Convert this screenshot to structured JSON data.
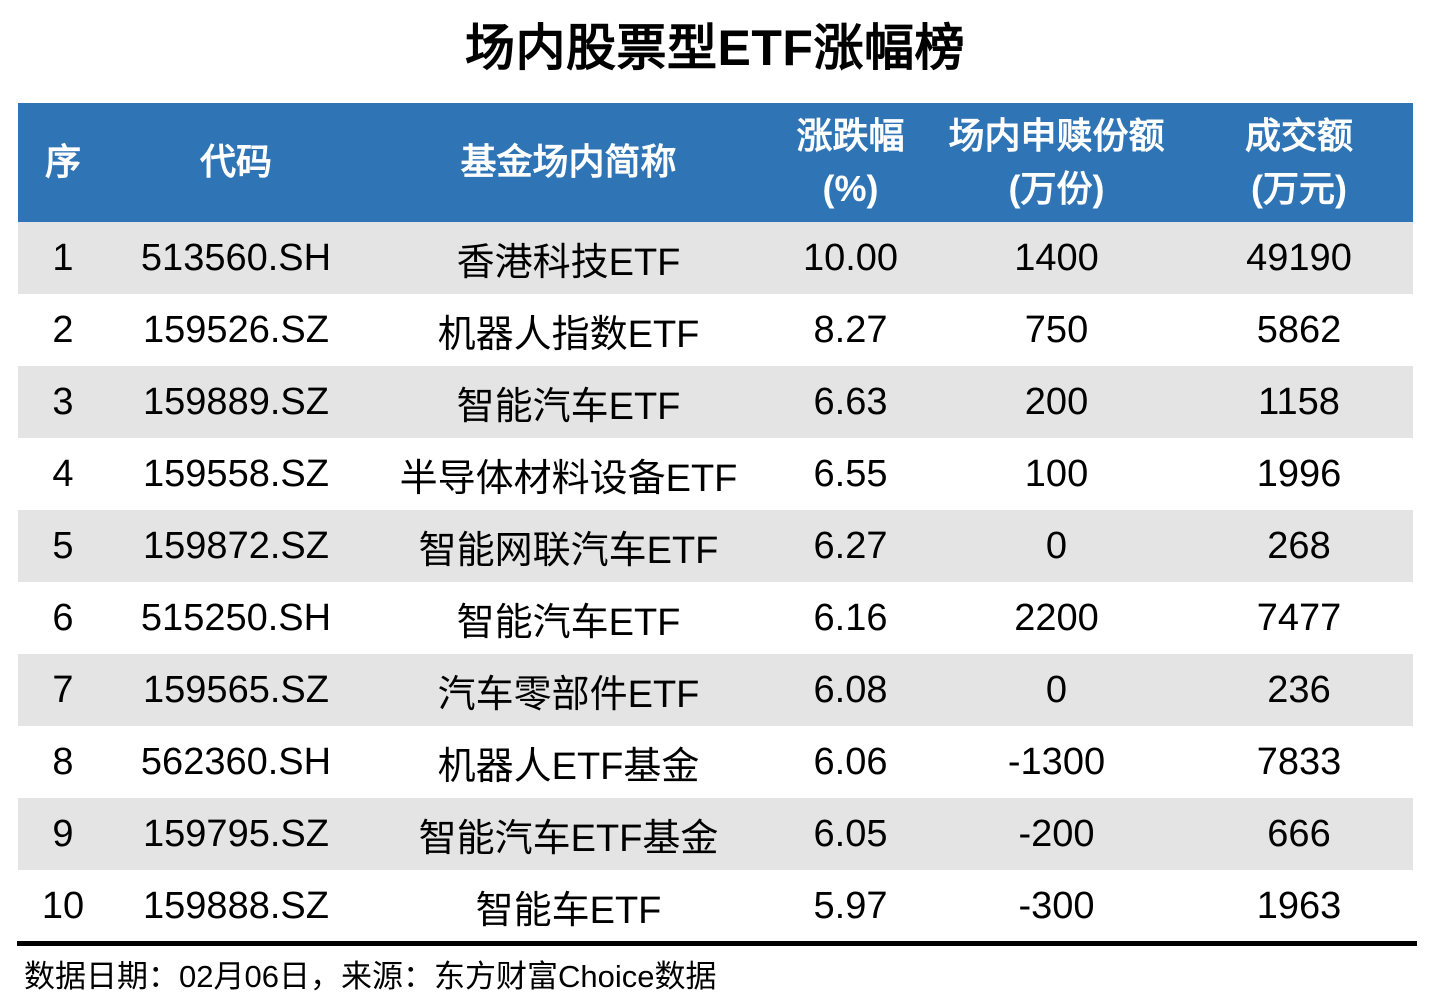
{
  "title": "场内股票型ETF涨幅榜",
  "colors": {
    "header_bg": "#2F74B5",
    "header_text": "#FFFFFF",
    "row_alt_bg": "#E4E4E4",
    "row_bg": "#FFFFFF",
    "body_text": "#000000",
    "divider": "#000000"
  },
  "table": {
    "columns": [
      {
        "label": "序",
        "unit": ""
      },
      {
        "label": "代码",
        "unit": ""
      },
      {
        "label": "基金场内简称",
        "unit": ""
      },
      {
        "label": "涨跌幅",
        "unit": "(%)"
      },
      {
        "label": "场内申赎份额",
        "unit": "(万份)"
      },
      {
        "label": "成交额",
        "unit": "(万元)"
      }
    ],
    "rows": [
      [
        "1",
        "513560.SH",
        "香港科技ETF",
        "10.00",
        "1400",
        "49190"
      ],
      [
        "2",
        "159526.SZ",
        "机器人指数ETF",
        "8.27",
        "750",
        "5862"
      ],
      [
        "3",
        "159889.SZ",
        "智能汽车ETF",
        "6.63",
        "200",
        "1158"
      ],
      [
        "4",
        "159558.SZ",
        "半导体材料设备ETF",
        "6.55",
        "100",
        "1996"
      ],
      [
        "5",
        "159872.SZ",
        "智能网联汽车ETF",
        "6.27",
        "0",
        "268"
      ],
      [
        "6",
        "515250.SH",
        "智能汽车ETF",
        "6.16",
        "2200",
        "7477"
      ],
      [
        "7",
        "159565.SZ",
        "汽车零部件ETF",
        "6.08",
        "0",
        "236"
      ],
      [
        "8",
        "562360.SH",
        "机器人ETF基金",
        "6.06",
        "-1300",
        "7833"
      ],
      [
        "9",
        "159795.SZ",
        "智能汽车ETF基金",
        "6.05",
        "-200",
        "666"
      ],
      [
        "10",
        "159888.SZ",
        "智能车ETF",
        "5.97",
        "-300",
        "1963"
      ]
    ]
  },
  "footer": {
    "note": "数据日期：02月06日，来源：东方财富Choice数据"
  },
  "chart_data": {
    "type": "table",
    "title": "场内股票型ETF涨幅榜",
    "columns": [
      "序",
      "代码",
      "基金场内简称",
      "涨跌幅(%)",
      "场内申赎份额(万份)",
      "成交额(万元)"
    ],
    "rows": [
      [
        1,
        "513560.SH",
        "香港科技ETF",
        10.0,
        1400,
        49190
      ],
      [
        2,
        "159526.SZ",
        "机器人指数ETF",
        8.27,
        750,
        5862
      ],
      [
        3,
        "159889.SZ",
        "智能汽车ETF",
        6.63,
        200,
        1158
      ],
      [
        4,
        "159558.SZ",
        "半导体材料设备ETF",
        6.55,
        100,
        1996
      ],
      [
        5,
        "159872.SZ",
        "智能网联汽车ETF",
        6.27,
        0,
        268
      ],
      [
        6,
        "515250.SH",
        "智能汽车ETF",
        6.16,
        2200,
        7477
      ],
      [
        7,
        "159565.SZ",
        "汽车零部件ETF",
        6.08,
        0,
        236
      ],
      [
        8,
        "562360.SH",
        "机器人ETF基金",
        6.06,
        -1300,
        7833
      ],
      [
        9,
        "159795.SZ",
        "智能汽车ETF基金",
        6.05,
        -200,
        666
      ],
      [
        10,
        "159888.SZ",
        "智能车ETF",
        5.97,
        -300,
        1963
      ]
    ],
    "source_note": "数据日期：02月06日，来源：东方财富Choice数据"
  }
}
